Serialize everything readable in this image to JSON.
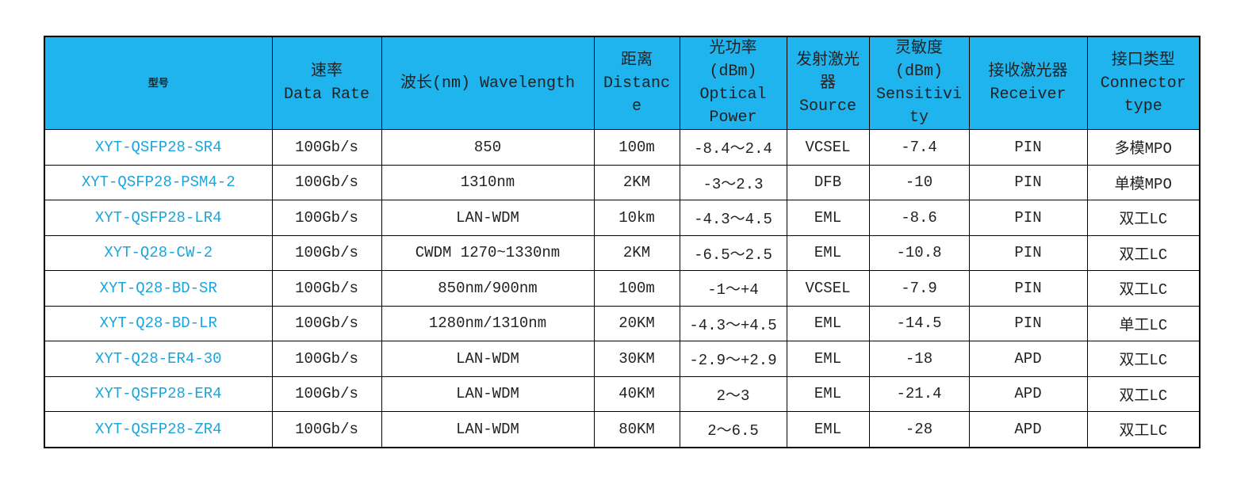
{
  "table": {
    "header": [
      [
        "型号"
      ],
      [
        "速率",
        "Data Rate"
      ],
      [
        "波长(nm) Wavelength"
      ],
      [
        "距离",
        "Distanc",
        "e"
      ],
      [
        "光功率",
        "(dBm)",
        "Optical",
        "Power"
      ],
      [
        "发射激光",
        "器",
        "Source"
      ],
      [
        "灵敏度",
        "(dBm)",
        "Sensitivi",
        "ty"
      ],
      [
        "接收激光器",
        "Receiver"
      ],
      [
        "接口类型",
        "Connector",
        "type"
      ]
    ],
    "rows": [
      [
        "XYT-QSFP28-SR4",
        "100Gb/s",
        "850",
        "100m",
        "-8.4～2.4",
        "VCSEL",
        "-7.4",
        "PIN",
        "多模MPO"
      ],
      [
        "XYT-QSFP28-PSM4-2",
        "100Gb/s",
        "1310nm",
        "2KM",
        "-3～2.3",
        "DFB",
        "-10",
        "PIN",
        "单模MPO"
      ],
      [
        "XYT-QSFP28-LR4",
        "100Gb/s",
        "LAN-WDM",
        "10km",
        "-4.3～4.5",
        "EML",
        "-8.6",
        "PIN",
        "双工LC"
      ],
      [
        "XYT-Q28-CW-2",
        "100Gb/s",
        "CWDM 1270~1330nm",
        "2KM",
        "-6.5～2.5",
        "EML",
        "-10.8",
        "PIN",
        "双工LC"
      ],
      [
        "XYT-Q28-BD-SR",
        "100Gb/s",
        "850nm/900nm",
        "100m",
        "-1～+4",
        "VCSEL",
        "-7.9",
        "PIN",
        "双工LC"
      ],
      [
        "XYT-Q28-BD-LR",
        "100Gb/s",
        "1280nm/1310nm",
        "20KM",
        "-4.3～+4.5",
        "EML",
        "-14.5",
        "PIN",
        "单工LC"
      ],
      [
        "XYT-Q28-ER4-30",
        "100Gb/s",
        "LAN-WDM",
        "30KM",
        "-2.9～+2.9",
        "EML",
        "-18",
        "APD",
        "双工LC"
      ],
      [
        "XYT-QSFP28-ER4",
        "100Gb/s",
        "LAN-WDM",
        "40KM",
        "2～3",
        "EML",
        "-21.4",
        "APD",
        "双工LC"
      ],
      [
        "XYT-QSFP28-ZR4",
        "100Gb/s",
        "LAN-WDM",
        "80KM",
        "2～6.5",
        "EML",
        "-28",
        "APD",
        "双工LC"
      ]
    ]
  }
}
